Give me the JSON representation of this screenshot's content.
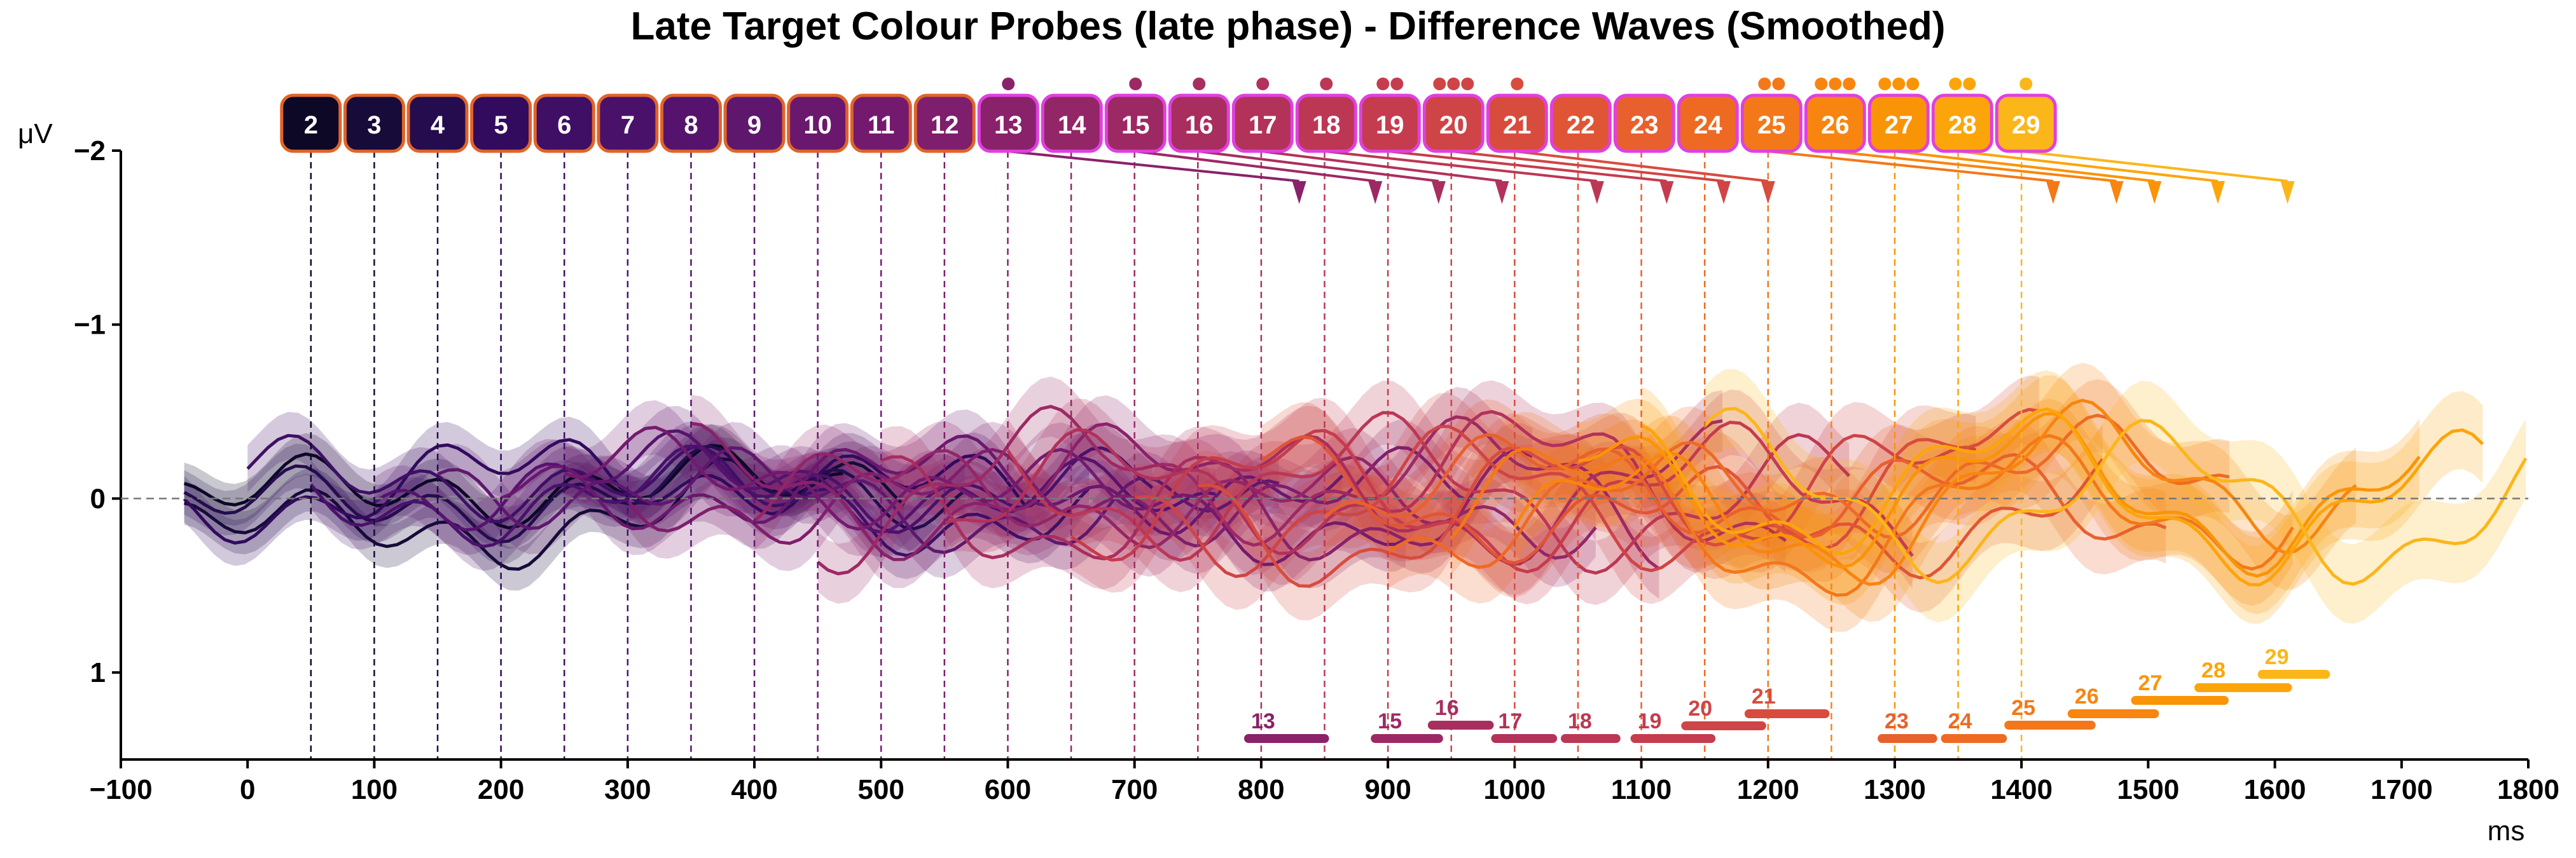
{
  "chart_data": {
    "type": "line",
    "title": "Late Target Colour Probes (late phase) - Difference Waves (Smoothed)",
    "xlabel": "ms",
    "ylabel": "μV",
    "xlim": [
      -100,
      1800
    ],
    "ylim": [
      1.5,
      -2.0
    ],
    "y_inverted": true,
    "x_ticks": [
      -100,
      0,
      100,
      200,
      300,
      400,
      500,
      600,
      700,
      800,
      900,
      1000,
      1100,
      1200,
      1300,
      1400,
      1500,
      1600,
      1700,
      1800
    ],
    "y_ticks": [
      -2,
      -1,
      0,
      1
    ],
    "y_tick_labels": [
      "−2",
      "−1",
      "0",
      "1"
    ],
    "zero_line": true,
    "grid": false,
    "probes": [
      {
        "label": "2",
        "onset": 50,
        "color": "#0c0826",
        "significant_clusters": 0,
        "arrow_to": null,
        "bar": null
      },
      {
        "label": "3",
        "onset": 100,
        "color": "#160b39",
        "significant_clusters": 0,
        "arrow_to": null,
        "bar": null
      },
      {
        "label": "4",
        "onset": 150,
        "color": "#240c4f",
        "significant_clusters": 0,
        "arrow_to": null,
        "bar": null
      },
      {
        "label": "5",
        "onset": 200,
        "color": "#320a5e",
        "significant_clusters": 0,
        "arrow_to": null,
        "bar": null
      },
      {
        "label": "6",
        "onset": 250,
        "color": "#3f0f66",
        "significant_clusters": 0,
        "arrow_to": null,
        "bar": null
      },
      {
        "label": "7",
        "onset": 300,
        "color": "#4a116b",
        "significant_clusters": 0,
        "arrow_to": null,
        "bar": null
      },
      {
        "label": "8",
        "onset": 350,
        "color": "#55136e",
        "significant_clusters": 0,
        "arrow_to": null,
        "bar": null
      },
      {
        "label": "9",
        "onset": 400,
        "color": "#5f176e",
        "significant_clusters": 0,
        "arrow_to": null,
        "bar": null
      },
      {
        "label": "10",
        "onset": 450,
        "color": "#6a176e",
        "significant_clusters": 0,
        "arrow_to": null,
        "bar": null
      },
      {
        "label": "11",
        "onset": 500,
        "color": "#741a6e",
        "significant_clusters": 0,
        "arrow_to": null,
        "bar": null
      },
      {
        "label": "12",
        "onset": 550,
        "color": "#7f1e6c",
        "significant_clusters": 0,
        "arrow_to": null,
        "bar": null
      },
      {
        "label": "13",
        "onset": 600,
        "color": "#89226a",
        "significant_clusters": 1,
        "arrow_to": 830,
        "bar": {
          "start": 790,
          "end": 850
        }
      },
      {
        "label": "14",
        "onset": 650,
        "color": "#932667",
        "significant_clusters": 0,
        "arrow_to": null,
        "bar": null
      },
      {
        "label": "15",
        "onset": 700,
        "color": "#9d2964",
        "significant_clusters": 1,
        "arrow_to": 890,
        "bar": {
          "start": 890,
          "end": 940
        }
      },
      {
        "label": "16",
        "onset": 750,
        "color": "#a82e5f",
        "significant_clusters": 1,
        "arrow_to": 940,
        "bar": {
          "start": 935,
          "end": 980
        }
      },
      {
        "label": "17",
        "onset": 800,
        "color": "#b2325a",
        "significant_clusters": 1,
        "arrow_to": 990,
        "bar": {
          "start": 985,
          "end": 1030
        }
      },
      {
        "label": "18",
        "onset": 850,
        "color": "#bc3754",
        "significant_clusters": 1,
        "arrow_to": 1065,
        "bar": {
          "start": 1040,
          "end": 1080
        }
      },
      {
        "label": "19",
        "onset": 900,
        "color": "#c53c4e",
        "significant_clusters": 2,
        "arrow_to": 1120,
        "bar": {
          "start": 1095,
          "end": 1155
        }
      },
      {
        "label": "20",
        "onset": 950,
        "color": "#cf4446",
        "significant_clusters": 3,
        "arrow_to": 1165,
        "bar": {
          "start": 1135,
          "end": 1195
        }
      },
      {
        "label": "21",
        "onset": 1000,
        "color": "#d84c3e",
        "significant_clusters": 1,
        "arrow_to": 1200,
        "bar": {
          "start": 1185,
          "end": 1245
        }
      },
      {
        "label": "22",
        "onset": 1050,
        "color": "#e05536",
        "significant_clusters": 0,
        "arrow_to": null,
        "bar": null
      },
      {
        "label": "23",
        "onset": 1100,
        "color": "#e8602d",
        "significant_clusters": 0,
        "arrow_to": null,
        "bar": {
          "start": 1290,
          "end": 1330
        }
      },
      {
        "label": "24",
        "onset": 1150,
        "color": "#ee6a23",
        "significant_clusters": 0,
        "arrow_to": null,
        "bar": {
          "start": 1340,
          "end": 1385
        }
      },
      {
        "label": "25",
        "onset": 1200,
        "color": "#f37819",
        "significant_clusters": 2,
        "arrow_to": 1425,
        "bar": {
          "start": 1390,
          "end": 1455
        }
      },
      {
        "label": "26",
        "onset": 1250,
        "color": "#f8850f",
        "significant_clusters": 3,
        "arrow_to": 1475,
        "bar": {
          "start": 1440,
          "end": 1505
        }
      },
      {
        "label": "27",
        "onset": 1300,
        "color": "#fa9407",
        "significant_clusters": 3,
        "arrow_to": 1505,
        "bar": {
          "start": 1490,
          "end": 1560
        }
      },
      {
        "label": "28",
        "onset": 1350,
        "color": "#fca50a",
        "significant_clusters": 2,
        "arrow_to": 1555,
        "bar": {
          "start": 1540,
          "end": 1610
        }
      },
      {
        "label": "29",
        "onset": 1400,
        "color": "#fbb61a",
        "significant_clusters": 1,
        "arrow_to": 1610,
        "bar": {
          "start": 1590,
          "end": 1640
        }
      }
    ],
    "box_border_colors": {
      "early": "#e0642a",
      "late": "#e040e0"
    },
    "shaded_error_band": true
  }
}
